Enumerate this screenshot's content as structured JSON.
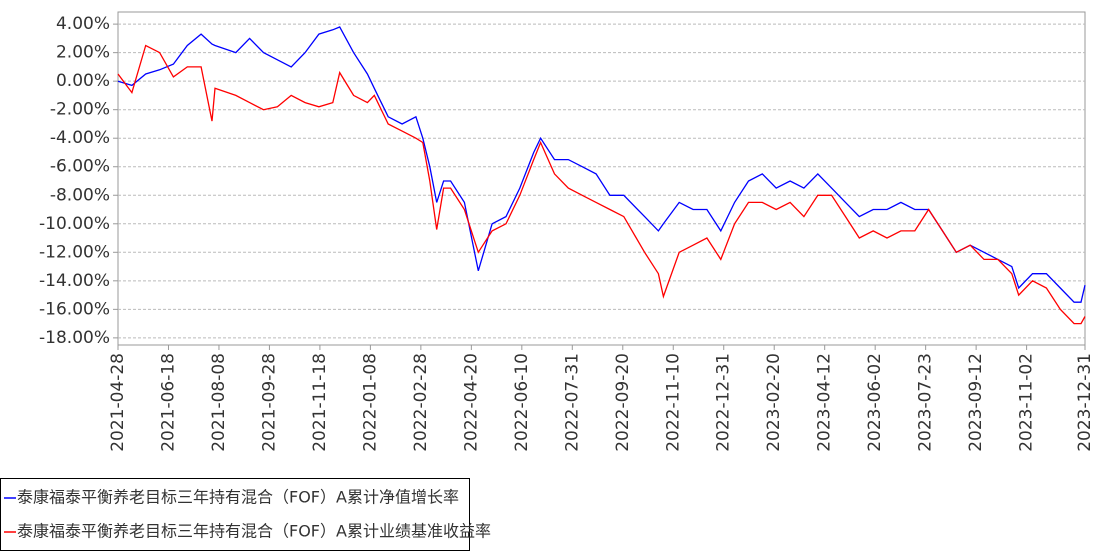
{
  "chart_data": {
    "type": "line",
    "x": [
      "2021-04-28",
      "2021-05-12",
      "2021-05-26",
      "2021-06-09",
      "2021-06-23",
      "2021-07-07",
      "2021-07-21",
      "2021-08-01",
      "2021-08-04",
      "2021-08-25",
      "2021-09-08",
      "2021-09-22",
      "2021-10-06",
      "2021-10-20",
      "2021-11-03",
      "2021-11-17",
      "2021-12-01",
      "2021-12-08",
      "2021-12-22",
      "2022-01-05",
      "2022-01-12",
      "2022-01-26",
      "2022-02-09",
      "2022-02-23",
      "2022-03-02",
      "2022-03-09",
      "2022-03-16",
      "2022-03-23",
      "2022-03-30",
      "2022-04-13",
      "2022-04-27",
      "2022-05-11",
      "2022-05-25",
      "2022-06-08",
      "2022-06-22",
      "2022-06-29",
      "2022-07-13",
      "2022-07-27",
      "2022-08-10",
      "2022-08-24",
      "2022-09-07",
      "2022-09-21",
      "2022-10-12",
      "2022-10-26",
      "2022-10-31",
      "2022-11-16",
      "2022-11-30",
      "2022-12-14",
      "2022-12-28",
      "2023-01-11",
      "2023-01-25",
      "2023-02-08",
      "2023-02-22",
      "2023-03-08",
      "2023-03-22",
      "2023-04-05",
      "2023-04-19",
      "2023-05-03",
      "2023-05-17",
      "2023-05-31",
      "2023-06-14",
      "2023-06-28",
      "2023-07-12",
      "2023-07-26",
      "2023-08-09",
      "2023-08-23",
      "2023-09-06",
      "2023-09-20",
      "2023-10-04",
      "2023-10-18",
      "2023-10-25",
      "2023-11-08",
      "2023-11-22",
      "2023-12-06",
      "2023-12-20",
      "2023-12-27",
      "2023-12-31"
    ],
    "series": [
      {
        "name": "泰康福泰平衡养老目标三年持有混合（FOF）A累计净值增长率",
        "color": "#0000ff",
        "values": [
          0,
          -0.3,
          0.5,
          0.8,
          1.2,
          2.5,
          3.3,
          2.6,
          2.5,
          2.0,
          3.0,
          2.0,
          1.5,
          1.0,
          2.0,
          3.3,
          3.6,
          3.8,
          2.0,
          0.5,
          -0.5,
          -2.5,
          -3.0,
          -2.5,
          -4.0,
          -6.0,
          -8.5,
          -7.0,
          -7.0,
          -8.5,
          -13.3,
          -10.0,
          -9.5,
          -7.5,
          -5.0,
          -4.0,
          -5.5,
          -5.5,
          -6.0,
          -6.5,
          -8.0,
          -8.0,
          -9.5,
          -10.5,
          -10.0,
          -8.5,
          -9.0,
          -9.0,
          -10.5,
          -8.5,
          -7.0,
          -6.5,
          -7.5,
          -7.0,
          -7.5,
          -6.5,
          -7.5,
          -8.5,
          -9.5,
          -9.0,
          -9.0,
          -8.5,
          -9.0,
          -9.0,
          -10.5,
          -12.0,
          -11.5,
          -12.0,
          -12.5,
          -13.0,
          -14.5,
          -13.5,
          -13.5,
          -14.5,
          -15.5,
          -15.5,
          -14.3
        ]
      },
      {
        "name": "泰康福泰平衡养老目标三年持有混合（FOF）A累计业绩基准收益率",
        "color": "#ff0000",
        "values": [
          0.5,
          -0.8,
          2.5,
          2.0,
          0.3,
          1.0,
          1.0,
          -2.8,
          -0.5,
          -1.0,
          -1.5,
          -2.0,
          -1.8,
          -1.0,
          -1.5,
          -1.8,
          -1.5,
          0.6,
          -1.0,
          -1.5,
          -1.0,
          -3.0,
          -3.5,
          -4.0,
          -4.3,
          -7.0,
          -10.4,
          -7.5,
          -7.5,
          -9.0,
          -12.0,
          -10.5,
          -10.0,
          -8.0,
          -5.5,
          -4.3,
          -6.5,
          -7.5,
          -8.0,
          -8.5,
          -9.0,
          -9.5,
          -12.0,
          -13.5,
          -15.1,
          -12.0,
          -11.5,
          -11.0,
          -12.5,
          -10.0,
          -8.5,
          -8.5,
          -9.0,
          -8.5,
          -9.5,
          -8.0,
          -8.0,
          -9.5,
          -11.0,
          -10.5,
          -11.0,
          -10.5,
          -10.5,
          -9.0,
          -10.5,
          -12.0,
          -11.5,
          -12.5,
          -12.5,
          -13.5,
          -15.0,
          -14.0,
          -14.5,
          -16.0,
          -17.0,
          -17.0,
          -16.5
        ]
      }
    ],
    "xlim": [
      "2021-04-28",
      "2023-12-31"
    ],
    "xticks": [
      "2021-04-28",
      "2021-06-18",
      "2021-08-08",
      "2021-09-28",
      "2021-11-18",
      "2022-01-08",
      "2022-02-28",
      "2022-04-20",
      "2022-06-10",
      "2022-07-31",
      "2022-09-20",
      "2022-11-10",
      "2022-12-31",
      "2023-02-20",
      "2023-04-12",
      "2023-06-02",
      "2023-07-23",
      "2023-09-12",
      "2023-11-02",
      "2023-12-31"
    ],
    "ylim": [
      -18.5,
      4.85
    ],
    "yticks": [
      {
        "value": 4,
        "label": "4.00%"
      },
      {
        "value": 2,
        "label": "2.00%"
      },
      {
        "value": 0,
        "label": "0.00%"
      },
      {
        "value": -2,
        "label": "-2.00%"
      },
      {
        "value": -4,
        "label": "-4.00%"
      },
      {
        "value": -6,
        "label": "-6.00%"
      },
      {
        "value": -8,
        "label": "-8.00%"
      },
      {
        "value": -10,
        "label": "-10.00%"
      },
      {
        "value": -12,
        "label": "-12.00%"
      },
      {
        "value": -14,
        "label": "-14.00%"
      },
      {
        "value": -16,
        "label": "-16.00%"
      },
      {
        "value": -18,
        "label": "-18.00%"
      }
    ],
    "grid": true
  }
}
